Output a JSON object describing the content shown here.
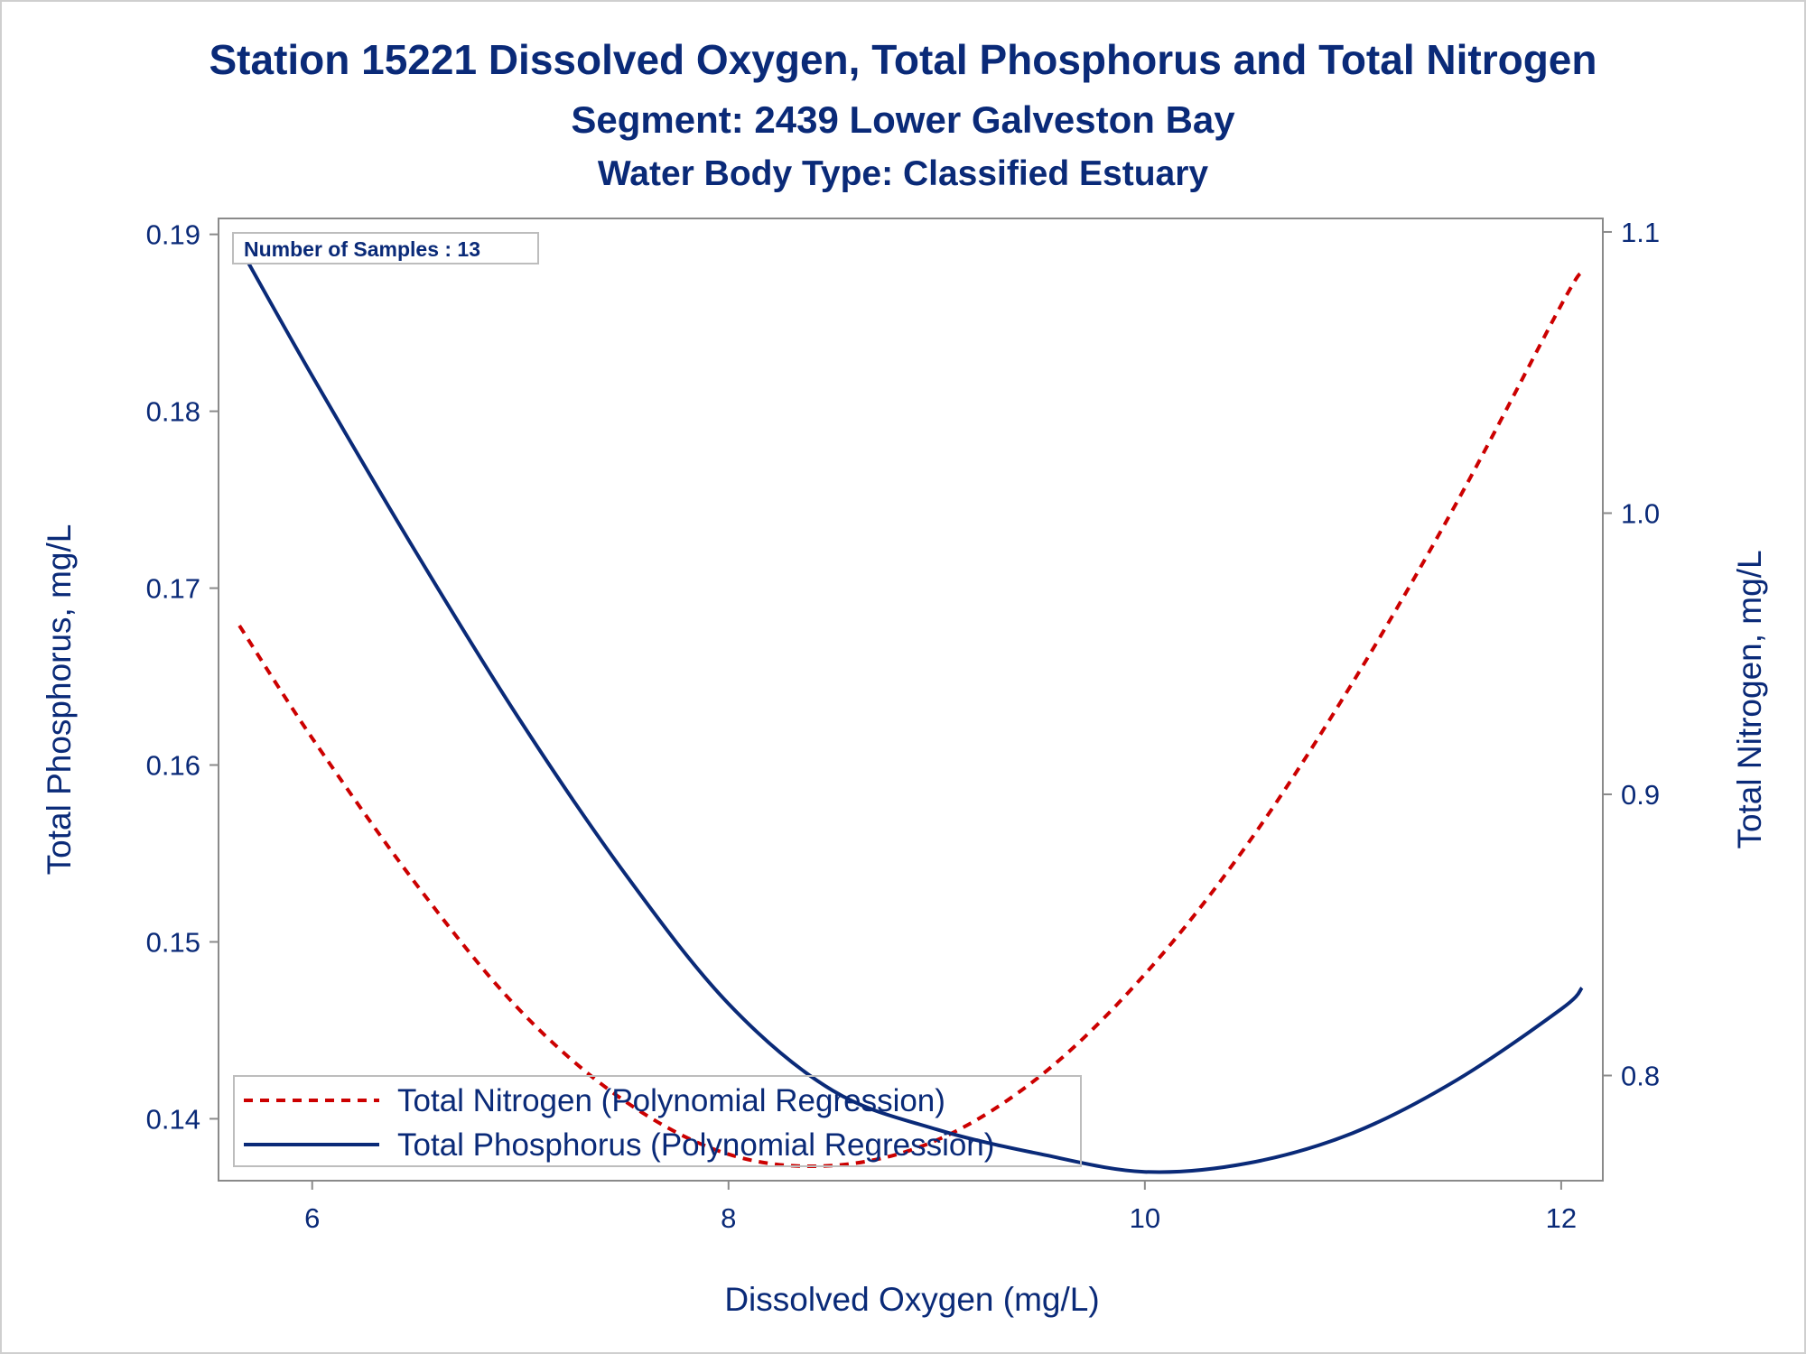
{
  "chart_data": {
    "type": "line",
    "title": "Station 15221  Dissolved Oxygen, Total Phosphorus and Total Nitrogen",
    "subtitle": "Segment: 2439  Lower Galveston Bay",
    "subtitle2": "Water Body Type: Classified Estuary",
    "xlabel": "Dissolved Oxygen (mg/L)",
    "ylabel_left": "Total Phosphorus, mg/L",
    "ylabel_right": "Total Nitrogen, mg/L",
    "xlim": [
      5.55,
      12.2
    ],
    "ylim_left": [
      0.1365,
      0.1909
    ],
    "ylim_right": [
      0.7626,
      1.1048
    ],
    "x_ticks": [
      "6",
      "8",
      "10",
      "12"
    ],
    "y_ticks_left": [
      "0.14",
      "0.15",
      "0.16",
      "0.17",
      "0.18",
      "0.19"
    ],
    "y_ticks_right": [
      "0.8",
      "0.9",
      "1.0",
      "1.1"
    ],
    "grid": false,
    "legend_position": "bottom-left",
    "inset_note": "Number of Samples : 13",
    "series": [
      {
        "name": "Total Nitrogen (Polynomial Regression)",
        "axis": "right",
        "style": "dashed",
        "color": "#cc0000",
        "x": [
          5.65,
          6.0,
          6.5,
          7.0,
          7.5,
          8.0,
          8.5,
          9.0,
          9.5,
          10.0,
          10.5,
          11.0,
          11.5,
          12.0,
          12.1
        ],
        "values": [
          0.96,
          0.92,
          0.868,
          0.823,
          0.791,
          0.772,
          0.768,
          0.777,
          0.8,
          0.836,
          0.883,
          0.94,
          1.004,
          1.074,
          1.086
        ]
      },
      {
        "name": "Total Phosphorus (Polynomial Regression)",
        "axis": "left",
        "style": "solid",
        "color": "#0a2a78",
        "x": [
          5.65,
          6.0,
          6.5,
          7.0,
          7.5,
          8.0,
          8.5,
          9.0,
          9.5,
          10.0,
          10.5,
          11.0,
          11.5,
          12.0,
          12.1
        ],
        "values": [
          0.1893,
          0.182,
          0.172,
          0.1625,
          0.1539,
          0.1465,
          0.1416,
          0.1394,
          0.138,
          0.137,
          0.1375,
          0.1392,
          0.1422,
          0.1462,
          0.1474
        ]
      }
    ]
  }
}
